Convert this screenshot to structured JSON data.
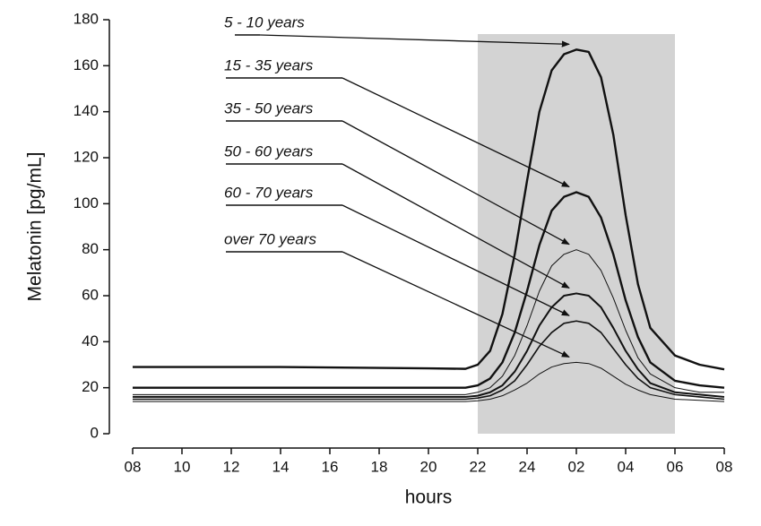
{
  "chart_data": {
    "type": "line",
    "x_label": "hours",
    "y_label": "Melatonin [pg/mL]",
    "x": [
      8,
      10,
      12,
      14,
      16,
      18,
      20,
      21.5,
      22,
      22.5,
      23,
      23.5,
      24,
      24.5,
      25,
      25.5,
      26,
      26.5,
      27,
      27.5,
      28,
      28.5,
      29,
      30,
      31,
      32
    ],
    "series": [
      {
        "name": "5 - 10 years",
        "color": "#111111",
        "line_width": 2.4,
        "values": [
          29,
          29,
          29,
          29,
          28.8,
          28.6,
          28.4,
          28.2,
          30,
          36,
          52,
          78,
          110,
          140,
          158,
          165,
          167,
          166,
          155,
          130,
          95,
          65,
          46,
          34,
          30,
          28
        ]
      },
      {
        "name": "15 - 35 years",
        "color": "#111111",
        "line_width": 2.4,
        "values": [
          20,
          20,
          20,
          20,
          20,
          20,
          20,
          20,
          21,
          24,
          31,
          44,
          62,
          82,
          97,
          103,
          105,
          103,
          94,
          78,
          58,
          42,
          31,
          23,
          21,
          20
        ]
      },
      {
        "name": "35 - 50 years",
        "color": "#111111",
        "line_width": 1,
        "values": [
          17,
          17,
          17,
          17,
          17,
          17,
          17,
          17,
          18,
          20,
          25,
          34,
          47,
          62,
          73,
          78,
          80,
          78,
          71,
          59,
          45,
          33,
          26,
          20,
          18,
          18
        ]
      },
      {
        "name": "50 - 60 years",
        "color": "#111111",
        "line_width": 2,
        "values": [
          16,
          16,
          16,
          16,
          16,
          16,
          16,
          16,
          16.5,
          18,
          21,
          27,
          36,
          47,
          55,
          60,
          61,
          60,
          55,
          46,
          36,
          28,
          22,
          18,
          17,
          16
        ]
      },
      {
        "name": "60 - 70 years",
        "color": "#111111",
        "line_width": 1.6,
        "values": [
          15,
          15,
          15,
          15,
          15,
          15,
          15,
          15,
          15.5,
          16.5,
          19,
          23,
          30,
          38,
          44,
          48,
          49,
          48,
          44,
          37,
          30,
          24,
          20,
          17,
          16,
          15
        ]
      },
      {
        "name": "over 70 years",
        "color": "#111111",
        "line_width": 1,
        "values": [
          14,
          14,
          14,
          14,
          14,
          14,
          14,
          14,
          14.3,
          15,
          16.5,
          19,
          22,
          26,
          29,
          30.5,
          31,
          30.5,
          28.5,
          25,
          21.5,
          19,
          17,
          15,
          14.5,
          14
        ]
      }
    ],
    "shaded_range": [
      22,
      30
    ],
    "shade_color": "#d3d3d3",
    "xlim": [
      8,
      32
    ],
    "xticks": [
      {
        "value": 8,
        "label": "08"
      },
      {
        "value": 10,
        "label": "10"
      },
      12,
      14,
      16,
      18,
      20,
      22,
      24,
      {
        "value": 26,
        "label": "02"
      },
      {
        "value": 28,
        "label": "04"
      },
      {
        "value": 30,
        "label": "06"
      },
      {
        "value": 32,
        "label": "08"
      }
    ],
    "ylim": [
      0,
      180
    ],
    "yticks": [
      0,
      20,
      40,
      60,
      80,
      100,
      120,
      140,
      160,
      180
    ]
  }
}
